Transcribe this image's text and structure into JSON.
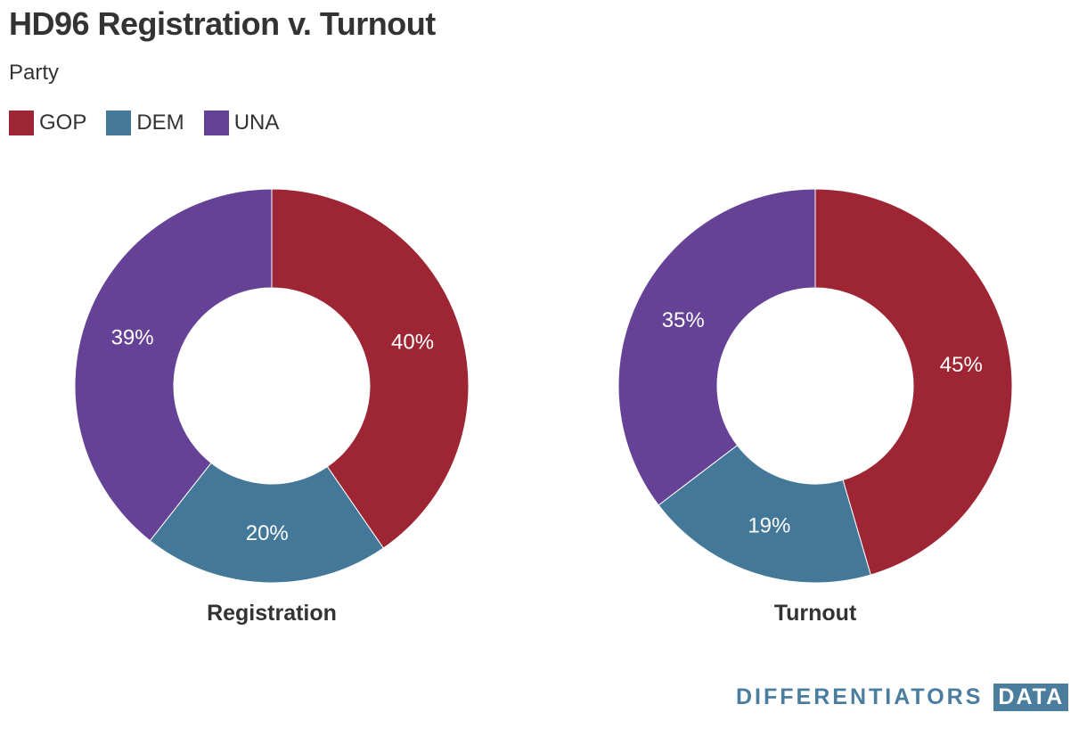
{
  "title": "HD96 Registration v. Turnout",
  "subtitle": "Party",
  "legend": [
    {
      "label": "GOP",
      "color": "#9e2533"
    },
    {
      "label": "DEM",
      "color": "#437899"
    },
    {
      "label": "UNA",
      "color": "#664296"
    }
  ],
  "chart_data": [
    {
      "type": "pie",
      "title": "Registration",
      "categories": [
        "GOP",
        "DEM",
        "UNA"
      ],
      "values": [
        40,
        20,
        39
      ],
      "labels": [
        "40%",
        "20%",
        "39%"
      ],
      "colors": [
        "#9e2533",
        "#437899",
        "#664296"
      ]
    },
    {
      "type": "pie",
      "title": "Turnout",
      "categories": [
        "GOP",
        "DEM",
        "UNA"
      ],
      "values": [
        45,
        19,
        35
      ],
      "labels": [
        "45%",
        "19%",
        "35%"
      ],
      "colors": [
        "#9e2533",
        "#437899",
        "#664296"
      ]
    }
  ],
  "footer": {
    "brand": "DIFFERENTIATORS",
    "brand_box": "DATA"
  }
}
